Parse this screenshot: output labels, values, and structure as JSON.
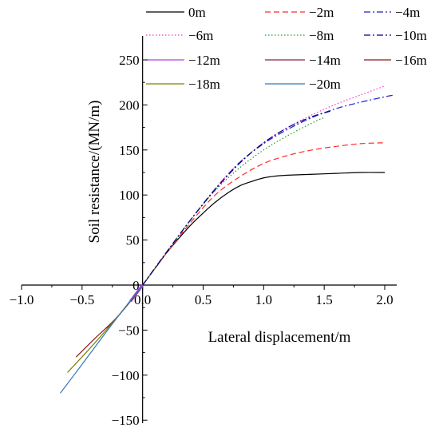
{
  "chart_data": {
    "type": "line",
    "title": "",
    "xlabel": "Lateral displacement/m",
    "ylabel": "Soil resistance/(MN/m)",
    "xlim": [
      -1.0,
      2.1
    ],
    "ylim": [
      -150,
      270
    ],
    "x_ticks": [
      -1.0,
      -0.5,
      0.0,
      0.5,
      1.0,
      1.5,
      2.0
    ],
    "x_tick_labels": [
      "−1.0",
      "−0.5",
      "0.0",
      "0.5",
      "1.0",
      "1.5",
      "2.0"
    ],
    "y_ticks": [
      -150,
      -100,
      -50,
      0,
      50,
      100,
      150,
      200,
      250
    ],
    "y_tick_labels": [
      "−150",
      "−100",
      "−50",
      "0",
      "50",
      "100",
      "150",
      "200",
      "250"
    ],
    "grid": false,
    "legend_position": "top",
    "series": [
      {
        "name": "0m",
        "color": "#000000",
        "dash": "solid",
        "x": [
          0,
          0.1,
          0.2,
          0.3,
          0.4,
          0.5,
          0.6,
          0.7,
          0.8,
          0.9,
          1.0,
          1.1,
          1.2,
          1.4,
          1.6,
          1.8,
          2.0
        ],
        "y": [
          0,
          18,
          36,
          52,
          67,
          80,
          92,
          102,
          110,
          115,
          119,
          121,
          122,
          123,
          124,
          125,
          125
        ]
      },
      {
        "name": "−2m",
        "color": "#ff2a2a",
        "dash": "dashed",
        "x": [
          0,
          0.2,
          0.4,
          0.6,
          0.8,
          1.0,
          1.2,
          1.4,
          1.6,
          1.8,
          2.0
        ],
        "y": [
          0,
          36,
          70,
          100,
          120,
          135,
          144,
          150,
          154,
          157,
          158
        ]
      },
      {
        "name": "−4m",
        "color": "#2020d0",
        "dash": "dashdot",
        "x": [
          0,
          0.2,
          0.4,
          0.6,
          0.8,
          1.0,
          1.2,
          1.4,
          1.6,
          1.8,
          2.0,
          2.08
        ],
        "y": [
          0,
          37,
          73,
          107,
          136,
          157,
          173,
          186,
          196,
          203,
          209,
          211
        ]
      },
      {
        "name": "−6m",
        "color": "#ff33cc",
        "dash": "dotted",
        "x": [
          0,
          0.2,
          0.4,
          0.6,
          0.8,
          1.0,
          1.2,
          1.4,
          1.6,
          1.8,
          2.0
        ],
        "y": [
          0,
          37,
          73,
          107,
          136,
          158,
          175,
          189,
          201,
          211,
          221
        ]
      },
      {
        "name": "−8m",
        "color": "#1a9e1a",
        "dash": "dotted",
        "x": [
          0,
          0.2,
          0.4,
          0.6,
          0.8,
          1.0,
          1.2,
          1.4,
          1.5
        ],
        "y": [
          0,
          37,
          73,
          105,
          130,
          150,
          166,
          180,
          186
        ]
      },
      {
        "name": "−10m",
        "color": "#00008b",
        "dash": "dashdot",
        "x": [
          0,
          0.2,
          0.4,
          0.6,
          0.8,
          1.0,
          1.2,
          1.4,
          1.55
        ],
        "y": [
          0,
          37,
          73,
          106,
          135,
          158,
          175,
          187,
          193
        ]
      },
      {
        "name": "−12m",
        "color": "#b040e0",
        "dash": "solid",
        "x": [
          -0.1,
          -0.05,
          0
        ],
        "y": [
          -18,
          -9,
          0
        ]
      },
      {
        "name": "−14m",
        "color": "#8b2252",
        "dash": "solid",
        "x": [
          -0.3,
          -0.2,
          -0.1,
          0
        ],
        "y": [
          -48,
          -34,
          -18,
          0
        ]
      },
      {
        "name": "−16m",
        "color": "#8b1a1a",
        "dash": "solid",
        "x": [
          -0.55,
          -0.4,
          -0.2,
          0
        ],
        "y": [
          -80,
          -60,
          -34,
          0
        ]
      },
      {
        "name": "−18m",
        "color": "#808000",
        "dash": "solid",
        "x": [
          -0.62,
          -0.4,
          -0.2,
          0
        ],
        "y": [
          -97,
          -65,
          -34,
          0
        ]
      },
      {
        "name": "−20m",
        "color": "#3377bb",
        "dash": "solid",
        "x": [
          -0.68,
          -0.5,
          -0.3,
          -0.1,
          0
        ],
        "y": [
          -120,
          -88,
          -52,
          -17,
          0
        ]
      }
    ]
  }
}
